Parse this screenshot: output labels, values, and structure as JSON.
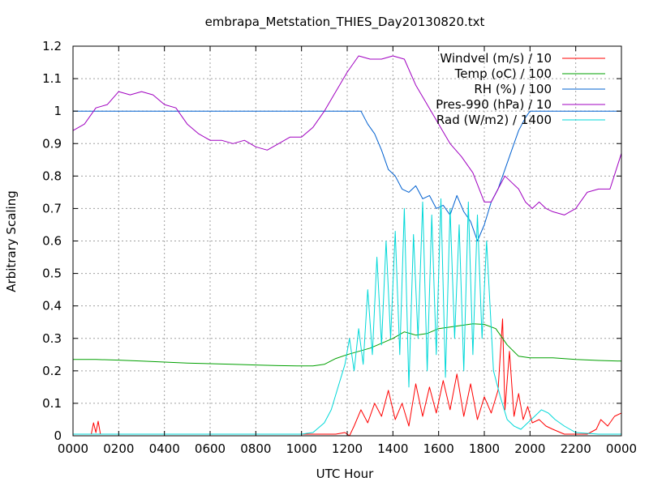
{
  "chart_data": {
    "type": "line",
    "title": "embrapa_Metstation_THIES_Day20130820.txt",
    "xlabel": "UTC Hour",
    "ylabel": "Arbitrary Scaling",
    "xlim": [
      0,
      24
    ],
    "ylim": [
      0,
      1.2
    ],
    "grid": true,
    "legend_position": "top-right",
    "x_ticks": [
      {
        "value": 0,
        "label": "0000"
      },
      {
        "value": 2,
        "label": "0200"
      },
      {
        "value": 4,
        "label": "0400"
      },
      {
        "value": 6,
        "label": "0600"
      },
      {
        "value": 8,
        "label": "0800"
      },
      {
        "value": 10,
        "label": "1000"
      },
      {
        "value": 12,
        "label": "1200"
      },
      {
        "value": 14,
        "label": "1400"
      },
      {
        "value": 16,
        "label": "1600"
      },
      {
        "value": 18,
        "label": "1800"
      },
      {
        "value": 20,
        "label": "2000"
      },
      {
        "value": 22,
        "label": "2200"
      },
      {
        "value": 24,
        "label": "0000"
      }
    ],
    "y_ticks": [
      {
        "value": 0,
        "label": "0"
      },
      {
        "value": 0.1,
        "label": "0.1"
      },
      {
        "value": 0.2,
        "label": "0.2"
      },
      {
        "value": 0.3,
        "label": "0.3"
      },
      {
        "value": 0.4,
        "label": "0.4"
      },
      {
        "value": 0.5,
        "label": "0.5"
      },
      {
        "value": 0.6,
        "label": "0.6"
      },
      {
        "value": 0.7,
        "label": "0.7"
      },
      {
        "value": 0.8,
        "label": "0.8"
      },
      {
        "value": 0.9,
        "label": "0.9"
      },
      {
        "value": 1,
        "label": "1"
      },
      {
        "value": 1.1,
        "label": "1.1"
      },
      {
        "value": 1.2,
        "label": "1.2"
      }
    ],
    "series": [
      {
        "name": "Windvel (m/s) / 10",
        "color": "#ff0000",
        "x": [
          0,
          0.8,
          0.9,
          1.0,
          1.1,
          1.2,
          1.3,
          2,
          4,
          6,
          8,
          10,
          11,
          11.5,
          11.9,
          12.1,
          12.3,
          12.6,
          12.9,
          13.2,
          13.5,
          13.8,
          14.1,
          14.4,
          14.7,
          15.0,
          15.3,
          15.6,
          15.9,
          16.2,
          16.5,
          16.8,
          17.1,
          17.4,
          17.7,
          18.0,
          18.3,
          18.6,
          18.8,
          18.9,
          19.1,
          19.3,
          19.5,
          19.7,
          19.9,
          20.1,
          20.4,
          20.7,
          21.0,
          21.5,
          22.0,
          22.5,
          22.9,
          23.1,
          23.4,
          23.7,
          24.0
        ],
        "y": [
          0.005,
          0.005,
          0.04,
          0.01,
          0.045,
          0.005,
          0.005,
          0.005,
          0.005,
          0.005,
          0.005,
          0.005,
          0.005,
          0.005,
          0.01,
          0.0,
          0.03,
          0.08,
          0.04,
          0.1,
          0.06,
          0.14,
          0.05,
          0.1,
          0.03,
          0.16,
          0.06,
          0.15,
          0.07,
          0.17,
          0.08,
          0.19,
          0.06,
          0.16,
          0.05,
          0.12,
          0.07,
          0.14,
          0.36,
          0.08,
          0.26,
          0.06,
          0.13,
          0.05,
          0.09,
          0.04,
          0.05,
          0.03,
          0.02,
          0.005,
          0.005,
          0.005,
          0.02,
          0.05,
          0.03,
          0.06,
          0.07
        ]
      },
      {
        "name": "Temp (oC) / 100",
        "color": "#00a000",
        "x": [
          0,
          1,
          2,
          3,
          4,
          5,
          6,
          7,
          8,
          9,
          9.8,
          10.5,
          11.0,
          11.5,
          12.0,
          12.5,
          13.0,
          13.5,
          14.0,
          14.5,
          15.0,
          15.5,
          16.0,
          16.5,
          17.0,
          17.5,
          18.0,
          18.5,
          19.0,
          19.5,
          20.0,
          21.0,
          22.0,
          23.0,
          24.0
        ],
        "y": [
          0.235,
          0.235,
          0.233,
          0.23,
          0.227,
          0.224,
          0.222,
          0.22,
          0.218,
          0.216,
          0.215,
          0.215,
          0.22,
          0.238,
          0.25,
          0.26,
          0.27,
          0.285,
          0.3,
          0.32,
          0.31,
          0.315,
          0.33,
          0.335,
          0.34,
          0.345,
          0.343,
          0.33,
          0.28,
          0.245,
          0.24,
          0.24,
          0.235,
          0.232,
          0.23
        ]
      },
      {
        "name": "RH (%) / 100",
        "color": "#0060d0",
        "x": [
          0,
          2,
          4,
          6,
          8,
          10,
          12,
          12.6,
          12.9,
          13.2,
          13.5,
          13.8,
          14.1,
          14.4,
          14.7,
          15.0,
          15.3,
          15.6,
          15.9,
          16.2,
          16.5,
          16.8,
          17.1,
          17.4,
          17.7,
          18.0,
          18.3,
          18.6,
          18.9,
          19.2,
          19.5,
          19.8,
          20.0,
          21,
          22,
          23,
          24
        ],
        "y": [
          1.0,
          1.0,
          1.0,
          1.0,
          1.0,
          1.0,
          1.0,
          1.0,
          0.96,
          0.93,
          0.88,
          0.82,
          0.8,
          0.76,
          0.75,
          0.77,
          0.73,
          0.74,
          0.7,
          0.71,
          0.68,
          0.74,
          0.69,
          0.66,
          0.6,
          0.65,
          0.72,
          0.76,
          0.82,
          0.88,
          0.94,
          0.98,
          1.0,
          1.0,
          1.0,
          1.0,
          1.0
        ]
      },
      {
        "name": "Pres-990 (hPa) / 10",
        "color": "#a000c0",
        "x": [
          0,
          0.5,
          1.0,
          1.5,
          2.0,
          2.5,
          3.0,
          3.5,
          4.0,
          4.5,
          5.0,
          5.5,
          6.0,
          6.5,
          7.0,
          7.5,
          8.0,
          8.5,
          9.0,
          9.5,
          10.0,
          10.5,
          11.0,
          11.5,
          12.0,
          12.5,
          13.0,
          13.5,
          14.0,
          14.5,
          15.0,
          15.5,
          16.0,
          16.5,
          17.0,
          17.5,
          18.0,
          18.3,
          18.6,
          18.9,
          19.2,
          19.5,
          19.8,
          20.1,
          20.4,
          20.7,
          21.0,
          21.5,
          22.0,
          22.5,
          23.0,
          23.5,
          24.0
        ],
        "y": [
          0.94,
          0.96,
          1.01,
          1.02,
          1.06,
          1.05,
          1.06,
          1.05,
          1.02,
          1.01,
          0.96,
          0.93,
          0.91,
          0.91,
          0.9,
          0.91,
          0.89,
          0.88,
          0.9,
          0.92,
          0.92,
          0.95,
          1.0,
          1.06,
          1.12,
          1.17,
          1.16,
          1.16,
          1.17,
          1.16,
          1.08,
          1.02,
          0.96,
          0.9,
          0.86,
          0.81,
          0.72,
          0.72,
          0.76,
          0.8,
          0.78,
          0.76,
          0.72,
          0.7,
          0.72,
          0.7,
          0.69,
          0.68,
          0.7,
          0.75,
          0.76,
          0.76,
          0.87
        ]
      },
      {
        "name": "Rad (W/m2) / 1400",
        "color": "#00d8d8",
        "x": [
          0,
          2,
          4,
          6,
          8,
          9.5,
          10.0,
          10.5,
          11.0,
          11.3,
          11.6,
          11.9,
          12.1,
          12.3,
          12.5,
          12.7,
          12.9,
          13.1,
          13.3,
          13.5,
          13.7,
          13.9,
          14.1,
          14.3,
          14.5,
          14.7,
          14.9,
          15.1,
          15.3,
          15.5,
          15.7,
          15.9,
          16.1,
          16.3,
          16.5,
          16.7,
          16.9,
          17.1,
          17.3,
          17.5,
          17.7,
          17.9,
          18.1,
          18.4,
          18.7,
          19.0,
          19.3,
          19.6,
          19.9,
          20.2,
          20.5,
          20.8,
          21.1,
          21.5,
          22.0,
          23.0,
          24.0
        ],
        "y": [
          0.005,
          0.005,
          0.005,
          0.005,
          0.005,
          0.005,
          0.005,
          0.01,
          0.04,
          0.08,
          0.15,
          0.22,
          0.3,
          0.2,
          0.33,
          0.22,
          0.45,
          0.25,
          0.55,
          0.28,
          0.6,
          0.3,
          0.63,
          0.25,
          0.7,
          0.15,
          0.62,
          0.3,
          0.72,
          0.2,
          0.68,
          0.25,
          0.73,
          0.18,
          0.7,
          0.3,
          0.65,
          0.2,
          0.72,
          0.25,
          0.68,
          0.3,
          0.6,
          0.2,
          0.12,
          0.05,
          0.03,
          0.02,
          0.04,
          0.06,
          0.08,
          0.07,
          0.05,
          0.03,
          0.01,
          0.005,
          0.005
        ]
      }
    ]
  }
}
